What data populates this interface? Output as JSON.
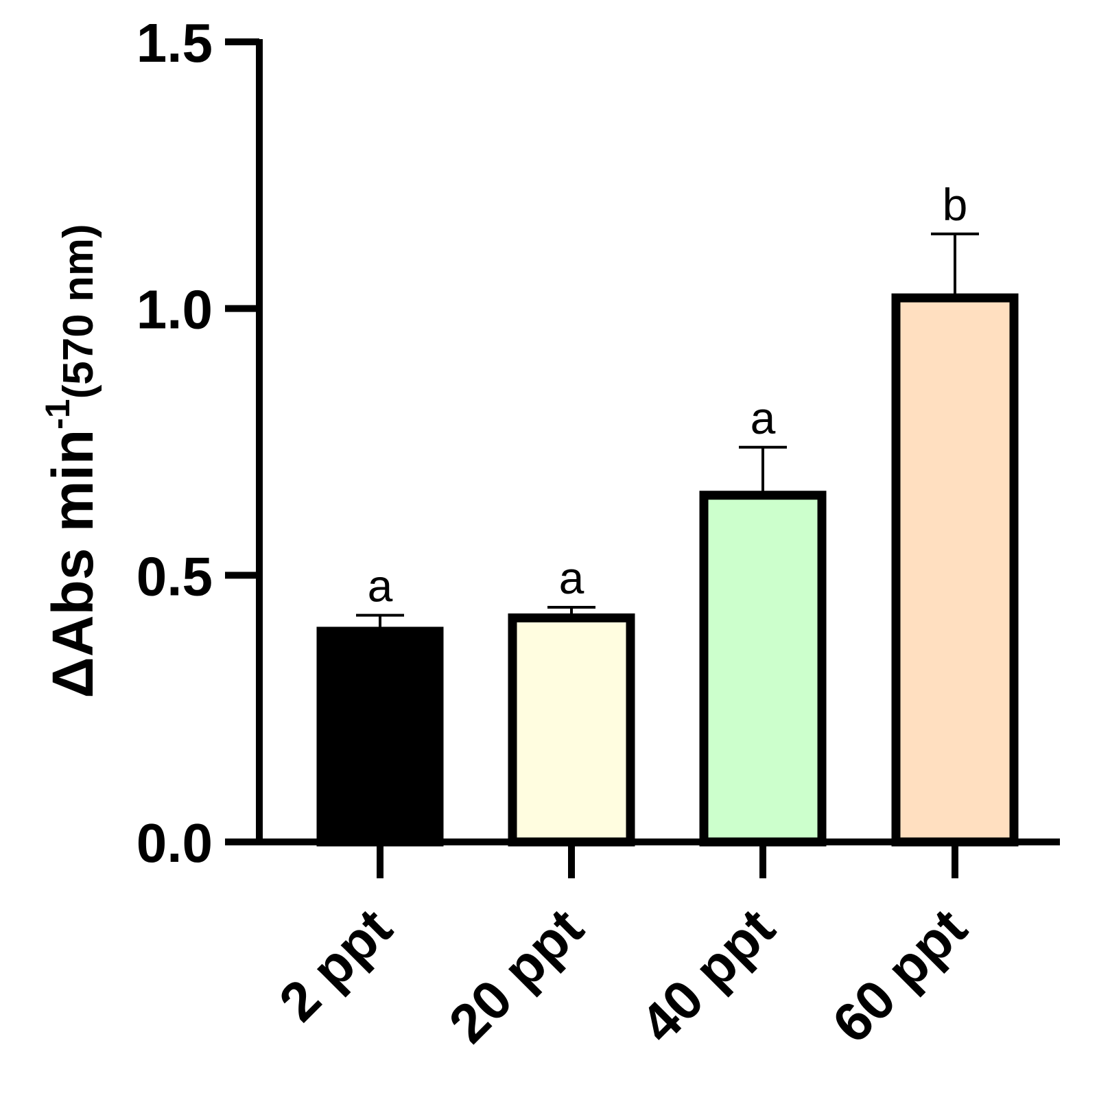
{
  "chart_data": {
    "type": "bar",
    "categories": [
      "2 ppt",
      "20 ppt",
      "40 ppt",
      "60 ppt"
    ],
    "values": [
      0.395,
      0.42,
      0.65,
      1.02
    ],
    "errors": [
      0.03,
      0.02,
      0.09,
      0.12
    ],
    "significance": [
      "a",
      "a",
      "a",
      "b"
    ],
    "colors": [
      "#000000",
      "#fffde0",
      "#ccffcc",
      "#ffdfc0"
    ],
    "edge_color": "#000000",
    "ylabel": {
      "main": "ΔAbs min",
      "superscript": "-1",
      "unit": "(570 nm)"
    },
    "xlabel": "",
    "ylim": [
      0,
      1.5
    ],
    "yticks": [
      "0.0",
      "0.5",
      "1.0",
      "1.5"
    ],
    "grid": false,
    "legend": "none"
  }
}
